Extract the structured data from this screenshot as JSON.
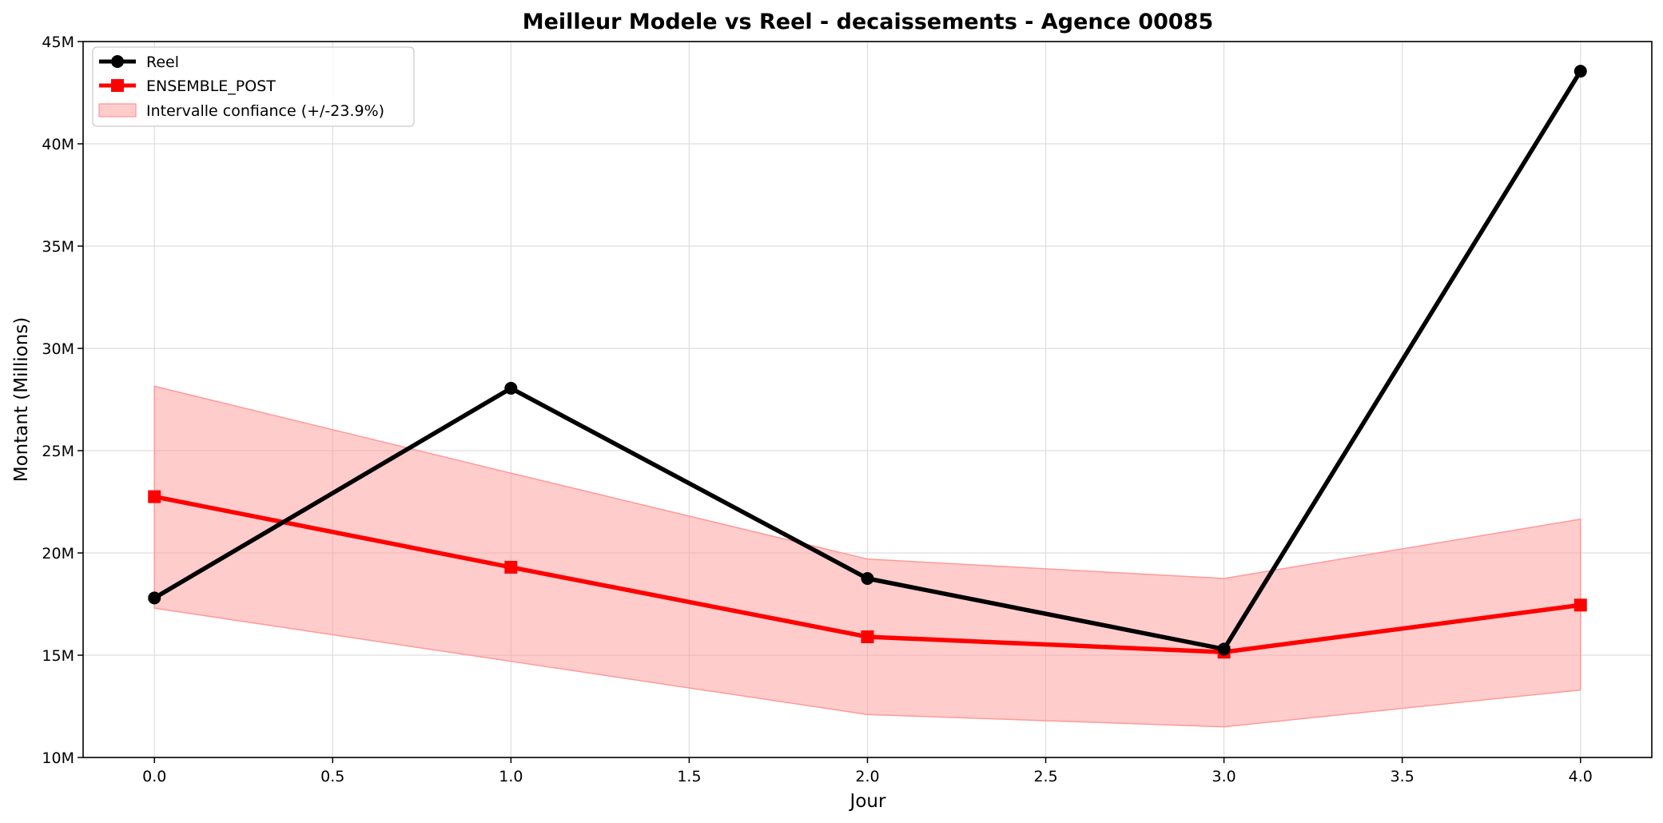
{
  "chart_data": {
    "type": "line",
    "title": "Meilleur Modele vs Reel - decaissements - Agence 00085",
    "xlabel": "Jour",
    "ylabel": "Montant (Millions)",
    "xlim": [
      -0.2,
      4.2
    ],
    "ylim": [
      10,
      45
    ],
    "x_ticks": [
      0.0,
      0.5,
      1.0,
      1.5,
      2.0,
      2.5,
      3.0,
      3.5,
      4.0
    ],
    "x_tick_labels": [
      "0.0",
      "0.5",
      "1.0",
      "1.5",
      "2.0",
      "2.5",
      "3.0",
      "3.5",
      "4.0"
    ],
    "y_ticks": [
      10,
      15,
      20,
      25,
      30,
      35,
      40,
      45
    ],
    "y_tick_labels": [
      "10M",
      "15M",
      "20M",
      "25M",
      "30M",
      "35M",
      "40M",
      "45M"
    ],
    "grid": true,
    "legend_position": "top-left",
    "x": [
      0,
      1,
      2,
      3,
      4
    ],
    "series": [
      {
        "name": "Reel",
        "values": [
          17.8,
          28.05,
          18.75,
          15.3,
          43.55
        ],
        "color": "#000000",
        "marker": "circle"
      },
      {
        "name": "ENSEMBLE_POST",
        "values": [
          22.75,
          19.3,
          15.9,
          15.15,
          17.45
        ],
        "color": "#ff0000",
        "marker": "square"
      }
    ],
    "band": {
      "name": "Intervalle confiance (+/-23.9%)",
      "lower": [
        17.3,
        14.7,
        12.1,
        11.5,
        13.3
      ],
      "upper": [
        28.15,
        23.9,
        19.7,
        18.75,
        21.65
      ],
      "color": "#ff9999"
    }
  }
}
